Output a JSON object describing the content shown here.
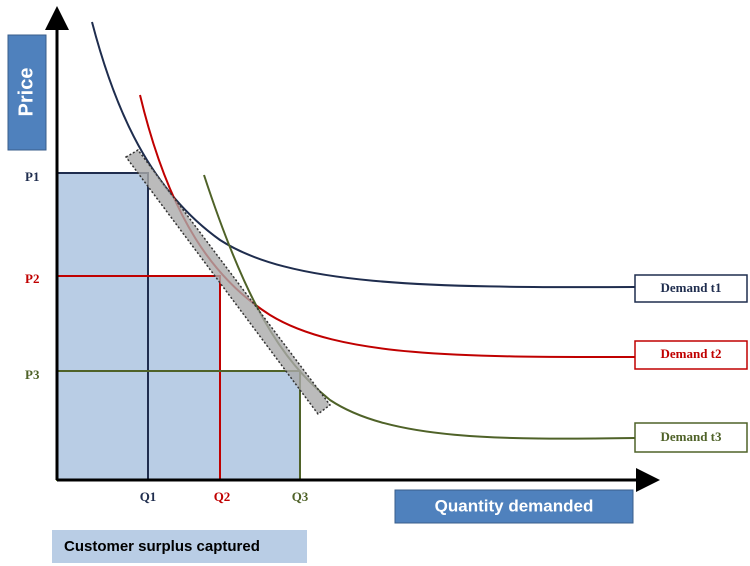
{
  "axes": {
    "y_label": "Price",
    "x_label": "Quantity demanded"
  },
  "prices": [
    "P1",
    "P2",
    "P3"
  ],
  "quantities": [
    "Q1",
    "Q2",
    "Q3"
  ],
  "curves": [
    "Demand t1",
    "Demand t2",
    "Demand t3"
  ],
  "legend": "Customer surplus captured"
}
